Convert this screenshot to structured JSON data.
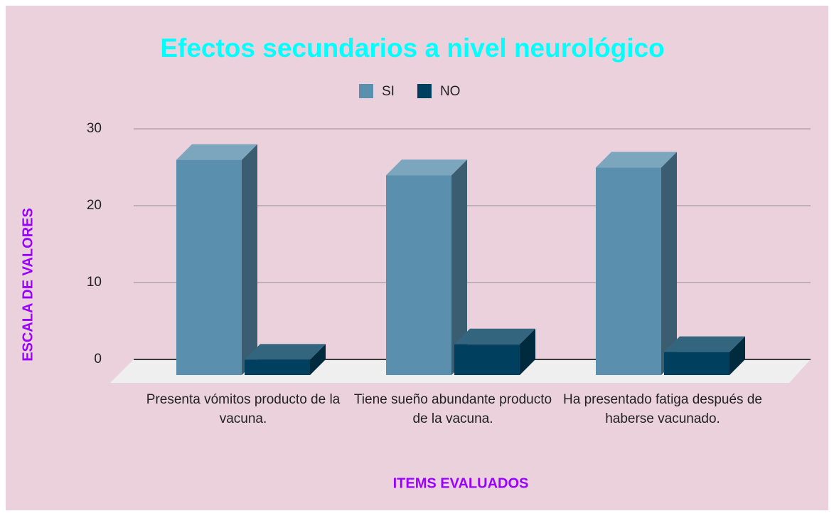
{
  "chart_data": {
    "type": "bar3d",
    "title": "Efectos secundarios a nivel neurológico",
    "x_label": "ITEMS EVALUADOS",
    "y_label": "ESCALA DE VALORES",
    "categories": [
      "Presenta vómitos producto de la vacuna.",
      "Tiene sueño abundante producto de la vacuna.",
      "Ha presentado fatiga después de haberse vacunado."
    ],
    "series": [
      {
        "name": "SI",
        "color": "#5b8fae",
        "values": [
          28,
          26,
          27
        ]
      },
      {
        "name": "NO",
        "color": "#00405e",
        "values": [
          2,
          4,
          3
        ]
      }
    ],
    "ylim": [
      0,
      30
    ],
    "yticks": [
      0,
      10,
      20,
      30
    ],
    "grid": true,
    "legend": "top"
  }
}
